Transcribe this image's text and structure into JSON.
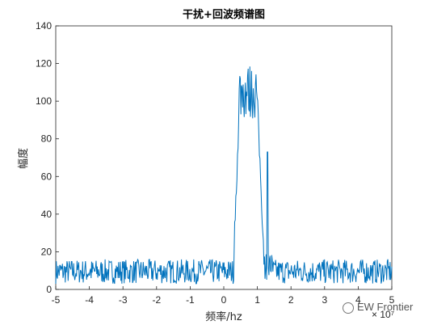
{
  "chart_data": {
    "type": "line",
    "title": "干扰+回波频谱图",
    "xlabel": "频率/hz",
    "ylabel": "幅度",
    "x_exponent": "× 10⁷",
    "xlim": [
      -50000000,
      50000000
    ],
    "ylim": [
      0,
      140
    ],
    "x_ticks": [
      "-5",
      "-4",
      "-3",
      "-2",
      "-1",
      "0",
      "1",
      "2",
      "3",
      "4",
      "5"
    ],
    "y_ticks": [
      "0",
      "20",
      "40",
      "60",
      "80",
      "100",
      "120",
      "140"
    ],
    "grid": false,
    "line_color": "#0072BD",
    "series": [
      {
        "x_start": -50000000,
        "x_end": 50000000,
        "points": 600,
        "baseline_range": [
          3,
          16
        ],
        "peak_x": [
          4500000,
          10000000
        ],
        "peak_value": 120,
        "spike_x": 13000000,
        "spike_value": 73
      }
    ]
  },
  "watermark": {
    "text": "EW Frontier"
  }
}
